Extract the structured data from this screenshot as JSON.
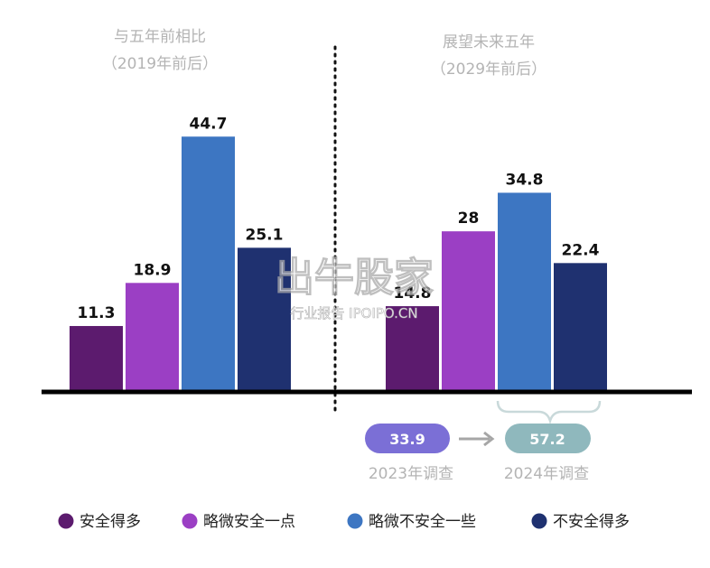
{
  "chart_data": {
    "type": "bar",
    "ylim": [
      0,
      50
    ],
    "groups": [
      {
        "title_line1": "与五年前相比",
        "title_line2": "（2019年前后）",
        "values": [
          11.3,
          18.9,
          44.7,
          25.1
        ],
        "value_labels": [
          "11.3",
          "18.9",
          "44.7",
          "25.1"
        ]
      },
      {
        "title_line1": "展望未来五年",
        "title_line2": "（2029年前后）",
        "values": [
          14.8,
          28,
          34.8,
          22.4
        ],
        "value_labels": [
          "14.8",
          "28",
          "34.8",
          "22.4"
        ]
      }
    ],
    "series": [
      {
        "name": "安全得多",
        "color": "#5c1b6e"
      },
      {
        "name": "略微安全一点",
        "color": "#9b3fc4"
      },
      {
        "name": "略微不安全一些",
        "color": "#3d76c2"
      },
      {
        "name": "不安全得多",
        "color": "#1f3170"
      }
    ],
    "comparison": {
      "left_value": "33.9",
      "left_label": "2023年调查",
      "left_color": "#7b6fd6",
      "right_value": "57.2",
      "right_label": "2024年调查",
      "right_color": "#8fb8bd"
    }
  },
  "watermark": {
    "main": "出牛股家",
    "sub": "行业报告 IPOIPO.CN"
  }
}
